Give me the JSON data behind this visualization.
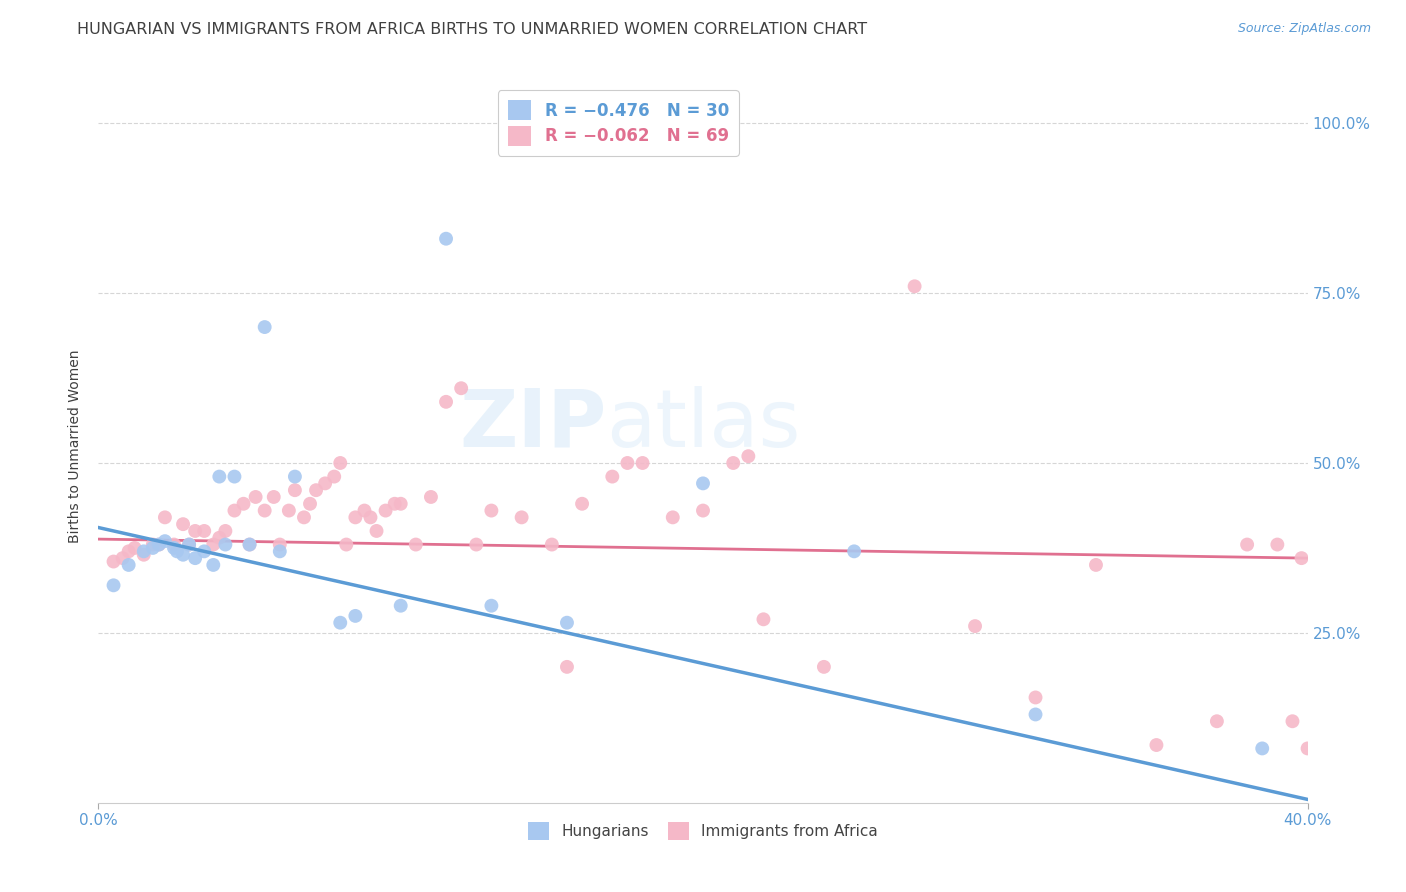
{
  "title": "HUNGARIAN VS IMMIGRANTS FROM AFRICA BIRTHS TO UNMARRIED WOMEN CORRELATION CHART",
  "source": "Source: ZipAtlas.com",
  "ylabel": "Births to Unmarried Women",
  "xlim": [
    0.0,
    0.4
  ],
  "ylim": [
    0.0,
    1.05
  ],
  "yticks": [
    0.25,
    0.5,
    0.75,
    1.0
  ],
  "ytick_labels": [
    "25.0%",
    "50.0%",
    "75.0%",
    "100.0%"
  ],
  "xticks": [
    0.0,
    0.4
  ],
  "xtick_labels": [
    "0.0%",
    "40.0%"
  ],
  "hungarian_color": "#a8c8f0",
  "african_color": "#f5b8c8",
  "hungarian_line_color": "#5b9bd5",
  "african_line_color": "#e07090",
  "grid_color": "#cccccc",
  "background_color": "#ffffff",
  "title_color": "#404040",
  "axis_label_color": "#404040",
  "tick_color": "#5b9bd5",
  "title_fontsize": 11.5,
  "source_fontsize": 9,
  "axis_label_fontsize": 10,
  "tick_fontsize": 11,
  "marker_size": 100,
  "hun_intercept": 0.405,
  "hun_slope": -1.0,
  "afr_intercept": 0.388,
  "afr_slope": -0.07,
  "hungarian_x": [
    0.005,
    0.01,
    0.015,
    0.018,
    0.02,
    0.022,
    0.025,
    0.026,
    0.028,
    0.03,
    0.032,
    0.035,
    0.038,
    0.04,
    0.042,
    0.045,
    0.05,
    0.055,
    0.06,
    0.065,
    0.08,
    0.085,
    0.1,
    0.115,
    0.13,
    0.155,
    0.2,
    0.25,
    0.31,
    0.385
  ],
  "hungarian_y": [
    0.32,
    0.35,
    0.37,
    0.375,
    0.38,
    0.385,
    0.375,
    0.37,
    0.365,
    0.38,
    0.36,
    0.37,
    0.35,
    0.48,
    0.38,
    0.48,
    0.38,
    0.7,
    0.37,
    0.48,
    0.265,
    0.275,
    0.29,
    0.83,
    0.29,
    0.265,
    0.47,
    0.37,
    0.13,
    0.08
  ],
  "african_x": [
    0.005,
    0.008,
    0.01,
    0.012,
    0.015,
    0.018,
    0.02,
    0.022,
    0.025,
    0.028,
    0.03,
    0.032,
    0.035,
    0.038,
    0.04,
    0.042,
    0.045,
    0.048,
    0.05,
    0.052,
    0.055,
    0.058,
    0.06,
    0.063,
    0.065,
    0.068,
    0.07,
    0.072,
    0.075,
    0.078,
    0.08,
    0.082,
    0.085,
    0.088,
    0.09,
    0.092,
    0.095,
    0.098,
    0.1,
    0.105,
    0.11,
    0.115,
    0.12,
    0.125,
    0.13,
    0.14,
    0.15,
    0.155,
    0.16,
    0.17,
    0.175,
    0.18,
    0.19,
    0.2,
    0.21,
    0.215,
    0.22,
    0.24,
    0.27,
    0.29,
    0.31,
    0.33,
    0.35,
    0.37,
    0.38,
    0.39,
    0.395,
    0.398,
    0.4
  ],
  "african_y": [
    0.355,
    0.36,
    0.37,
    0.375,
    0.365,
    0.38,
    0.38,
    0.42,
    0.38,
    0.41,
    0.38,
    0.4,
    0.4,
    0.38,
    0.39,
    0.4,
    0.43,
    0.44,
    0.38,
    0.45,
    0.43,
    0.45,
    0.38,
    0.43,
    0.46,
    0.42,
    0.44,
    0.46,
    0.47,
    0.48,
    0.5,
    0.38,
    0.42,
    0.43,
    0.42,
    0.4,
    0.43,
    0.44,
    0.44,
    0.38,
    0.45,
    0.59,
    0.61,
    0.38,
    0.43,
    0.42,
    0.38,
    0.2,
    0.44,
    0.48,
    0.5,
    0.5,
    0.42,
    0.43,
    0.5,
    0.51,
    0.27,
    0.2,
    0.76,
    0.26,
    0.155,
    0.35,
    0.085,
    0.12,
    0.38,
    0.38,
    0.12,
    0.36,
    0.08
  ]
}
